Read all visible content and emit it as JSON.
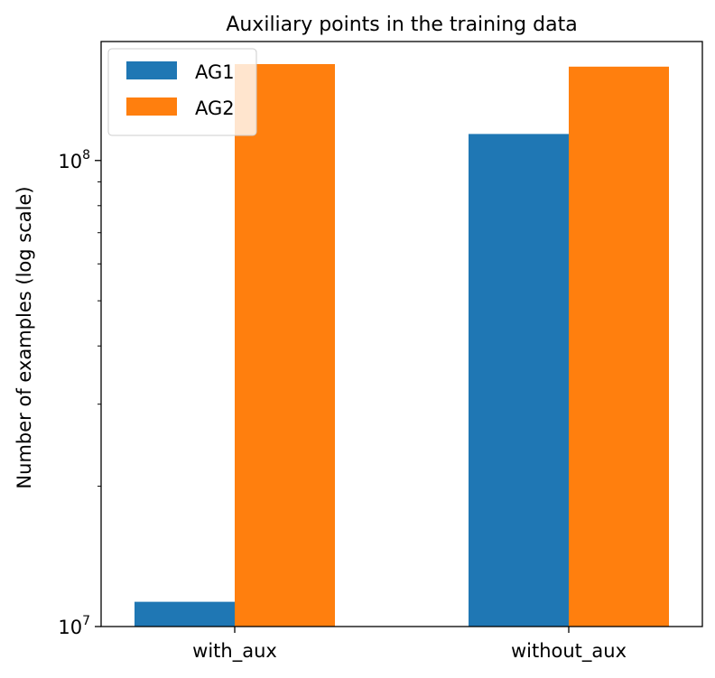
{
  "chart_data": {
    "type": "bar",
    "title": "Auxiliary points in the training data",
    "xlabel": "",
    "ylabel": "Number of examples (log scale)",
    "yscale": "log",
    "ylim": [
      10000000,
      180000000
    ],
    "y_ticks": [
      {
        "value": 10000000,
        "base": "10",
        "exp": "7"
      },
      {
        "value": 100000000,
        "base": "10",
        "exp": "8"
      }
    ],
    "categories": [
      "with_aux",
      "without_aux"
    ],
    "series": [
      {
        "name": "AG1",
        "color": "#1f77b4",
        "values": [
          11300000,
          114000000
        ]
      },
      {
        "name": "AG2",
        "color": "#ff7f0e",
        "values": [
          161000000,
          159000000
        ]
      }
    ],
    "legend": "top-left",
    "grid": false
  }
}
